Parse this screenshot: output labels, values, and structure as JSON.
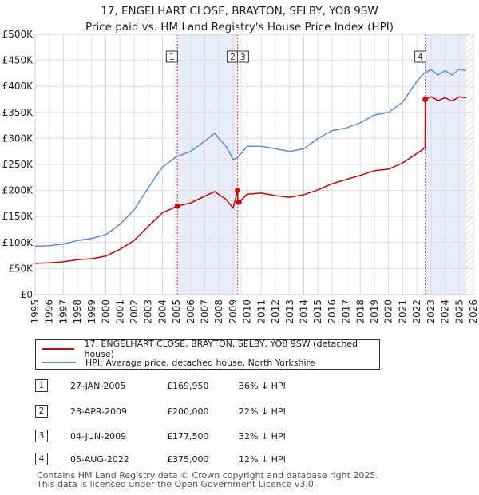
{
  "title": {
    "line1": "17, ENGELHART CLOSE, BRAYTON, SELBY, YO8 9SW",
    "line2": "Price paid vs. HM Land Registry's House Price Index (HPI)"
  },
  "legend": {
    "property": "17, ENGELHART CLOSE, BRAYTON, SELBY, YO8 9SW (detached house)",
    "hpi": "HPI: Average price, detached house, North Yorkshire"
  },
  "colors": {
    "property_line": "#cc0000",
    "hpi_line": "#5b8dd9",
    "highlight_band": "#e6ecf8",
    "marker_line": "#e05050",
    "grid": "#dddddd"
  },
  "transactions": [
    {
      "num": "1",
      "date": "27-JAN-2005",
      "price": "£169,950",
      "hpi": "36% ↓ HPI"
    },
    {
      "num": "2",
      "date": "28-APR-2009",
      "price": "£200,000",
      "hpi": "22% ↓ HPI"
    },
    {
      "num": "3",
      "date": "04-JUN-2009",
      "price": "£177,500",
      "hpi": "32% ↓ HPI"
    },
    {
      "num": "4",
      "date": "05-AUG-2022",
      "price": "£375,000",
      "hpi": "12% ↓ HPI"
    }
  ],
  "footer": {
    "line1": "Contains HM Land Registry data © Crown copyright and database right 2025.",
    "line2": "This data is licensed under the Open Government Licence v3.0."
  },
  "chart_data": {
    "type": "line",
    "title": "17, ENGELHART CLOSE, BRAYTON, SELBY, YO8 9SW — Price paid vs. HM Land Registry's House Price Index (HPI)",
    "xlabel": "",
    "ylabel": "",
    "xlim": [
      1995,
      2026
    ],
    "ylim": [
      0,
      500000
    ],
    "grid": true,
    "legend_position": "bottom",
    "x_ticks": [
      1995,
      1996,
      1997,
      1998,
      1999,
      2000,
      2001,
      2002,
      2003,
      2004,
      2005,
      2006,
      2007,
      2008,
      2009,
      2010,
      2011,
      2012,
      2013,
      2014,
      2015,
      2016,
      2017,
      2018,
      2019,
      2020,
      2021,
      2022,
      2023,
      2024,
      2025,
      2026
    ],
    "y_ticks": [
      0,
      50000,
      100000,
      150000,
      200000,
      250000,
      300000,
      350000,
      400000,
      450000,
      500000
    ],
    "y_tick_labels": [
      "£0",
      "£50K",
      "£100K",
      "£150K",
      "£200K",
      "£250K",
      "£300K",
      "£350K",
      "£400K",
      "£450K",
      "£500K"
    ],
    "highlight_spans": [
      [
        2005.07,
        2009.32
      ],
      [
        2022.59,
        2025.5
      ]
    ],
    "hatch_from": 2025.5,
    "markers": [
      {
        "label": "1",
        "x": 2005.07,
        "y": 169950
      },
      {
        "label": "2",
        "x": 2009.32,
        "y": 200000
      },
      {
        "label": "3",
        "x": 2009.42,
        "y": 177500
      },
      {
        "label": "4",
        "x": 2022.59,
        "y": 375000
      }
    ],
    "series": [
      {
        "name": "HPI: Average price, detached house, North Yorkshire",
        "color": "#5b8dd9",
        "x": [
          1995,
          1996,
          1997,
          1998,
          1999,
          2000,
          2001,
          2002,
          2003,
          2004,
          2005,
          2006,
          2007,
          2007.7,
          2008,
          2008.5,
          2009,
          2009.3,
          2010,
          2011,
          2012,
          2013,
          2014,
          2015,
          2016,
          2017,
          2018,
          2019,
          2020,
          2021,
          2022,
          2022.5,
          2023,
          2023.5,
          2024,
          2024.5,
          2025,
          2025.5
        ],
        "y": [
          93000,
          94000,
          97000,
          104000,
          108000,
          115000,
          135000,
          163000,
          205000,
          245000,
          265000,
          275000,
          295000,
          310000,
          300000,
          285000,
          260000,
          262000,
          285000,
          285000,
          280000,
          275000,
          280000,
          300000,
          315000,
          320000,
          330000,
          345000,
          350000,
          370000,
          410000,
          425000,
          432000,
          422000,
          430000,
          422000,
          433000,
          430000
        ]
      },
      {
        "name": "17, ENGELHART CLOSE, BRAYTON, SELBY, YO8 9SW (detached house)",
        "color": "#cc0000",
        "x": [
          1995,
          1996,
          1997,
          1998,
          1999,
          2000,
          2001,
          2002,
          2003,
          2004,
          2005.07,
          2006,
          2007,
          2007.7,
          2008,
          2008.5,
          2009,
          2009.32,
          2009.33,
          2009.42,
          2010,
          2011,
          2012,
          2013,
          2014,
          2015,
          2016,
          2017,
          2018,
          2019,
          2020,
          2021,
          2022,
          2022.58,
          2022.59,
          2023,
          2023.5,
          2024,
          2024.5,
          2025,
          2025.5
        ],
        "y": [
          60000,
          61000,
          63000,
          67000,
          69000,
          74000,
          87000,
          104000,
          131000,
          157000,
          169950,
          176000,
          189000,
          198000,
          192000,
          183000,
          166000,
          200000,
          177500,
          177500,
          193000,
          195000,
          190000,
          187000,
          192000,
          201000,
          213000,
          221000,
          229000,
          238000,
          241000,
          253000,
          271000,
          282000,
          375000,
          380000,
          373000,
          378000,
          372000,
          380000,
          378000
        ]
      }
    ]
  }
}
